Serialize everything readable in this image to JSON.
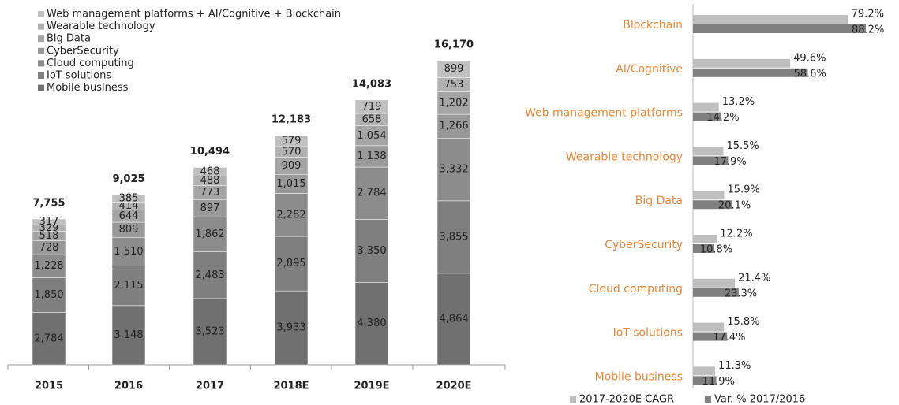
{
  "chart_data": [
    {
      "type": "stacked-bar",
      "categories": [
        "2015",
        "2016",
        "2017",
        "2018E",
        "2019E",
        "2020E"
      ],
      "totals": [
        7755,
        9025,
        10494,
        12183,
        14083,
        16170
      ],
      "total_labels": [
        "7,755",
        "9,025",
        "10,494",
        "12,183",
        "14,083",
        "16,170"
      ],
      "series": [
        {
          "name": "Mobile business",
          "color": "#707070",
          "values": [
            2784,
            3148,
            3523,
            3933,
            4380,
            4864
          ],
          "value_labels": [
            "2,784",
            "3,148",
            "3,523",
            "3,933",
            "4,380",
            "4,864"
          ]
        },
        {
          "name": "IoT solutions",
          "color": "#7f7f7f",
          "values": [
            1850,
            2115,
            2483,
            2895,
            3350,
            3855
          ],
          "value_labels": [
            "1,850",
            "2,115",
            "2,483",
            "2,895",
            "3,350",
            "3,855"
          ]
        },
        {
          "name": "Cloud computing",
          "color": "#8c8c8c",
          "values": [
            1228,
            1510,
            1862,
            2282,
            2784,
            3332
          ],
          "value_labels": [
            "1,228",
            "1,510",
            "1,862",
            "2,282",
            "2,784",
            "3,332"
          ]
        },
        {
          "name": "CyberSecurity",
          "color": "#999999",
          "values": [
            728,
            809,
            897,
            1015,
            1138,
            1266
          ],
          "value_labels": [
            "728",
            "809",
            "897",
            "1,015",
            "1,138",
            "1,266"
          ]
        },
        {
          "name": "Big Data",
          "color": "#a5a5a5",
          "values": [
            518,
            644,
            773,
            909,
            1054,
            1202
          ],
          "value_labels": [
            "518",
            "644",
            "773",
            "909",
            "1,054",
            "1,202"
          ]
        },
        {
          "name": "Wearable technology",
          "color": "#b2b2b2",
          "values": [
            329,
            414,
            488,
            570,
            658,
            753
          ],
          "value_labels": [
            "329",
            "414",
            "488",
            "570",
            "658",
            "753"
          ]
        },
        {
          "name": "Web management platforms + AI/Cognitive + Blockchain",
          "color": "#c0c0c0",
          "values": [
            317,
            385,
            468,
            579,
            719,
            899
          ],
          "value_labels": [
            "317",
            "385",
            "468",
            "579",
            "719",
            "899"
          ]
        }
      ]
    },
    {
      "type": "grouped-hbar",
      "categories": [
        "Blockchain",
        "AI/Cognitive",
        "Web management platforms",
        "Wearable technology",
        "Big Data",
        "CyberSecurity",
        "Cloud computing",
        "IoT solutions",
        "Mobile business"
      ],
      "series": [
        {
          "name": "2017-2020E CAGR",
          "color": "#bfbfbf",
          "values": [
            79.2,
            49.6,
            13.2,
            15.5,
            15.9,
            12.2,
            21.4,
            15.8,
            11.3
          ],
          "value_labels": [
            "79.2%",
            "49.6%",
            "13.2%",
            "15.5%",
            "15.9%",
            "12.2%",
            "21.4%",
            "15.8%",
            "11.3%"
          ]
        },
        {
          "name": "Var. % 2017/2016",
          "color": "#808080",
          "values": [
            88.2,
            58.6,
            14.2,
            17.9,
            20.1,
            10.8,
            23.3,
            17.4,
            11.9
          ],
          "value_labels": [
            "88.2%",
            "58.6%",
            "14.2%",
            "17.9%",
            "20.1%",
            "10.8%",
            "23.3%",
            "17.4%",
            "11.9%"
          ]
        }
      ]
    }
  ]
}
